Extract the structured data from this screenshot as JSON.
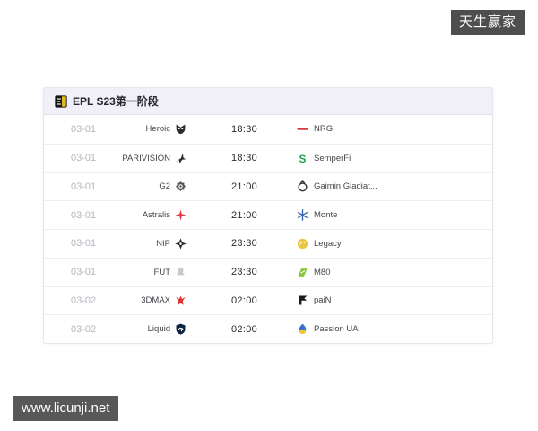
{
  "page": {
    "top_badge": {
      "text": "天生赢家",
      "bg": "#4e4e4e",
      "color": "#ffffff"
    },
    "watermark": {
      "text": "www.licunji.net",
      "bg": "#585858",
      "color": "#ffffff"
    }
  },
  "card": {
    "title": "EPL S23第一阶段",
    "title_icon": "epl-league-logo",
    "header_bg": "#f1f0f8",
    "columns": [
      "date",
      "team1",
      "time",
      "team2"
    ],
    "rows": [
      {
        "date": "03-01",
        "team1": {
          "name": "Heroic",
          "logo": "heroic-logo",
          "color": "#2b2b2b"
        },
        "time": "18:30",
        "team2": {
          "name": "NRG",
          "logo": "nrg-logo",
          "color": "#d63a3a"
        }
      },
      {
        "date": "03-01",
        "team1": {
          "name": "PARIVISION",
          "logo": "parivision-logo",
          "color": "#2b2b2b"
        },
        "time": "18:30",
        "team2": {
          "name": "SemperFi",
          "logo": "semperfi-logo",
          "color": "#1ea54d"
        }
      },
      {
        "date": "03-01",
        "team1": {
          "name": "G2",
          "logo": "g2-logo",
          "color": "#55555b"
        },
        "time": "21:00",
        "team2": {
          "name": "Gaimin Gladiat...",
          "logo": "gaimin-logo",
          "color": "#33333a"
        }
      },
      {
        "date": "03-01",
        "team1": {
          "name": "Astralis",
          "logo": "astralis-logo",
          "color": "#e0394a"
        },
        "time": "21:00",
        "team2": {
          "name": "Monte",
          "logo": "monte-logo",
          "color": "#3b66b4"
        }
      },
      {
        "date": "03-01",
        "team1": {
          "name": "NIP",
          "logo": "nip-logo",
          "color": "#2a2a2e"
        },
        "time": "23:30",
        "team2": {
          "name": "Legacy",
          "logo": "legacy-logo",
          "color": "#e9c53f"
        }
      },
      {
        "date": "03-01",
        "team1": {
          "name": "FUT",
          "logo": "fut-logo",
          "color": "#c9c9cd"
        },
        "time": "23:30",
        "team2": {
          "name": "M80",
          "logo": "m80-logo",
          "color": "#8bc53f"
        }
      },
      {
        "date": "03-02",
        "team1": {
          "name": "3DMAX",
          "logo": "3dmax-logo",
          "color": "#e03131"
        },
        "time": "02:00",
        "team2": {
          "name": "paiN",
          "logo": "pain-logo",
          "color": "#1a1a1e"
        }
      },
      {
        "date": "03-02",
        "team1": {
          "name": "Liquid",
          "logo": "liquid-logo",
          "color": "#0d2240"
        },
        "time": "02:00",
        "team2": {
          "name": "Passion UA",
          "logo": "passion-ua-logo",
          "color": "#3b6fd0"
        }
      }
    ]
  }
}
